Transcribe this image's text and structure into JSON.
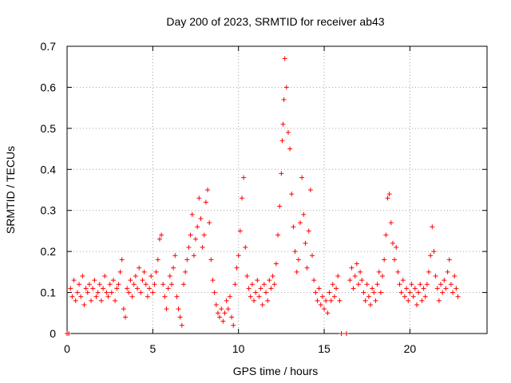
{
  "chart_data": {
    "type": "scatter",
    "title": "Day 200 of 2023, SRMTID for receiver ab43",
    "xlabel": "GPS time / hours",
    "ylabel": "SRMTID / TECUs",
    "xlim": [
      0,
      24.5
    ],
    "ylim": [
      0,
      0.7
    ],
    "xticks": [
      0,
      5,
      10,
      15,
      20
    ],
    "xtick_labels": [
      "0",
      "5",
      "10",
      "15",
      "20"
    ],
    "yticks": [
      0,
      0.1,
      0.2,
      0.3,
      0.4,
      0.5,
      0.6,
      0.7
    ],
    "ytick_labels": [
      "0",
      "0.1",
      "0.2",
      "0.3",
      "0.4",
      "0.5",
      "0.6",
      "0.7"
    ],
    "grid": true,
    "marker": "+",
    "color": "#ff0000",
    "series": [
      {
        "name": "SRMTID",
        "points": [
          [
            0.0,
            0.0
          ],
          [
            0.1,
            0.0
          ],
          [
            0.2,
            0.11
          ],
          [
            0.3,
            0.09
          ],
          [
            0.4,
            0.13
          ],
          [
            0.5,
            0.08
          ],
          [
            0.6,
            0.1
          ],
          [
            0.7,
            0.12
          ],
          [
            0.8,
            0.09
          ],
          [
            0.9,
            0.14
          ],
          [
            1.0,
            0.07
          ],
          [
            1.1,
            0.11
          ],
          [
            1.2,
            0.1
          ],
          [
            1.3,
            0.12
          ],
          [
            1.4,
            0.08
          ],
          [
            1.5,
            0.11
          ],
          [
            1.6,
            0.13
          ],
          [
            1.7,
            0.09
          ],
          [
            1.8,
            0.1
          ],
          [
            1.9,
            0.12
          ],
          [
            2.0,
            0.08
          ],
          [
            2.1,
            0.11
          ],
          [
            2.2,
            0.14
          ],
          [
            2.3,
            0.1
          ],
          [
            2.4,
            0.09
          ],
          [
            2.5,
            0.12
          ],
          [
            2.6,
            0.1
          ],
          [
            2.7,
            0.13
          ],
          [
            2.8,
            0.08
          ],
          [
            2.9,
            0.11
          ],
          [
            3.0,
            0.12
          ],
          [
            3.1,
            0.15
          ],
          [
            3.2,
            0.18
          ],
          [
            3.3,
            0.06
          ],
          [
            3.4,
            0.04
          ],
          [
            3.5,
            0.11
          ],
          [
            3.6,
            0.1
          ],
          [
            3.7,
            0.13
          ],
          [
            3.8,
            0.09
          ],
          [
            3.9,
            0.12
          ],
          [
            4.0,
            0.14
          ],
          [
            4.1,
            0.11
          ],
          [
            4.2,
            0.16
          ],
          [
            4.3,
            0.1
          ],
          [
            4.4,
            0.13
          ],
          [
            4.5,
            0.15
          ],
          [
            4.6,
            0.12
          ],
          [
            4.7,
            0.09
          ],
          [
            4.8,
            0.11
          ],
          [
            4.9,
            0.14
          ],
          [
            5.0,
            0.1
          ],
          [
            5.1,
            0.12
          ],
          [
            5.2,
            0.15
          ],
          [
            5.3,
            0.18
          ],
          [
            5.4,
            0.23
          ],
          [
            5.5,
            0.24
          ],
          [
            5.6,
            0.12
          ],
          [
            5.7,
            0.09
          ],
          [
            5.8,
            0.06
          ],
          [
            5.9,
            0.11
          ],
          [
            6.0,
            0.14
          ],
          [
            6.1,
            0.12
          ],
          [
            6.2,
            0.16
          ],
          [
            6.3,
            0.19
          ],
          [
            6.4,
            0.09
          ],
          [
            6.5,
            0.06
          ],
          [
            6.6,
            0.04
          ],
          [
            6.7,
            0.02
          ],
          [
            6.8,
            0.12
          ],
          [
            6.9,
            0.15
          ],
          [
            7.0,
            0.18
          ],
          [
            7.1,
            0.21
          ],
          [
            7.2,
            0.24
          ],
          [
            7.3,
            0.29
          ],
          [
            7.4,
            0.19
          ],
          [
            7.5,
            0.23
          ],
          [
            7.6,
            0.26
          ],
          [
            7.7,
            0.33
          ],
          [
            7.8,
            0.28
          ],
          [
            7.9,
            0.21
          ],
          [
            8.0,
            0.24
          ],
          [
            8.1,
            0.32
          ],
          [
            8.2,
            0.35
          ],
          [
            8.3,
            0.27
          ],
          [
            8.4,
            0.18
          ],
          [
            8.5,
            0.13
          ],
          [
            8.6,
            0.1
          ],
          [
            8.7,
            0.07
          ],
          [
            8.8,
            0.05
          ],
          [
            8.9,
            0.04
          ],
          [
            9.0,
            0.06
          ],
          [
            9.1,
            0.03
          ],
          [
            9.2,
            0.05
          ],
          [
            9.3,
            0.08
          ],
          [
            9.4,
            0.06
          ],
          [
            9.5,
            0.09
          ],
          [
            9.6,
            0.04
          ],
          [
            9.7,
            0.02
          ],
          [
            9.8,
            0.12
          ],
          [
            9.9,
            0.16
          ],
          [
            10.0,
            0.19
          ],
          [
            10.1,
            0.25
          ],
          [
            10.2,
            0.33
          ],
          [
            10.3,
            0.38
          ],
          [
            10.4,
            0.21
          ],
          [
            10.5,
            0.14
          ],
          [
            10.6,
            0.11
          ],
          [
            10.7,
            0.09
          ],
          [
            10.8,
            0.12
          ],
          [
            10.9,
            0.08
          ],
          [
            11.0,
            0.1
          ],
          [
            11.1,
            0.13
          ],
          [
            11.2,
            0.09
          ],
          [
            11.3,
            0.11
          ],
          [
            11.4,
            0.07
          ],
          [
            11.5,
            0.12
          ],
          [
            11.6,
            0.1
          ],
          [
            11.7,
            0.08
          ],
          [
            11.8,
            0.13
          ],
          [
            11.9,
            0.11
          ],
          [
            12.0,
            0.14
          ],
          [
            12.1,
            0.12
          ],
          [
            12.2,
            0.17
          ],
          [
            12.3,
            0.24
          ],
          [
            12.4,
            0.31
          ],
          [
            12.5,
            0.39
          ],
          [
            12.55,
            0.47
          ],
          [
            12.6,
            0.51
          ],
          [
            12.65,
            0.57
          ],
          [
            12.7,
            0.67
          ],
          [
            12.8,
            0.6
          ],
          [
            12.9,
            0.49
          ],
          [
            13.0,
            0.45
          ],
          [
            13.1,
            0.34
          ],
          [
            13.2,
            0.26
          ],
          [
            13.3,
            0.2
          ],
          [
            13.4,
            0.15
          ],
          [
            13.5,
            0.18
          ],
          [
            13.6,
            0.27
          ],
          [
            13.7,
            0.38
          ],
          [
            13.8,
            0.29
          ],
          [
            13.9,
            0.22
          ],
          [
            14.0,
            0.16
          ],
          [
            14.1,
            0.25
          ],
          [
            14.2,
            0.35
          ],
          [
            14.3,
            0.19
          ],
          [
            14.4,
            0.13
          ],
          [
            14.5,
            0.1
          ],
          [
            14.6,
            0.08
          ],
          [
            14.7,
            0.11
          ],
          [
            14.8,
            0.07
          ],
          [
            14.9,
            0.09
          ],
          [
            15.0,
            0.06
          ],
          [
            15.1,
            0.08
          ],
          [
            15.2,
            0.05
          ],
          [
            15.3,
            0.1
          ],
          [
            15.4,
            0.08
          ],
          [
            15.5,
            0.12
          ],
          [
            15.6,
            0.09
          ],
          [
            15.7,
            0.11
          ],
          [
            15.8,
            0.14
          ],
          [
            15.9,
            0.08
          ],
          [
            16.0,
            0.0
          ],
          [
            16.3,
            0.0
          ],
          [
            16.5,
            0.13
          ],
          [
            16.6,
            0.16
          ],
          [
            16.7,
            0.11
          ],
          [
            16.8,
            0.14
          ],
          [
            16.9,
            0.17
          ],
          [
            17.0,
            0.12
          ],
          [
            17.1,
            0.15
          ],
          [
            17.2,
            0.13
          ],
          [
            17.3,
            0.1
          ],
          [
            17.4,
            0.08
          ],
          [
            17.5,
            0.12
          ],
          [
            17.6,
            0.09
          ],
          [
            17.7,
            0.07
          ],
          [
            17.8,
            0.11
          ],
          [
            17.9,
            0.1
          ],
          [
            18.0,
            0.08
          ],
          [
            18.1,
            0.12
          ],
          [
            18.2,
            0.15
          ],
          [
            18.3,
            0.1
          ],
          [
            18.4,
            0.14
          ],
          [
            18.5,
            0.18
          ],
          [
            18.6,
            0.24
          ],
          [
            18.7,
            0.33
          ],
          [
            18.8,
            0.34
          ],
          [
            18.9,
            0.27
          ],
          [
            19.0,
            0.22
          ],
          [
            19.1,
            0.18
          ],
          [
            19.2,
            0.21
          ],
          [
            19.3,
            0.15
          ],
          [
            19.4,
            0.12
          ],
          [
            19.5,
            0.1
          ],
          [
            19.6,
            0.13
          ],
          [
            19.7,
            0.09
          ],
          [
            19.8,
            0.11
          ],
          [
            19.9,
            0.08
          ],
          [
            20.0,
            0.1
          ],
          [
            20.1,
            0.12
          ],
          [
            20.2,
            0.09
          ],
          [
            20.3,
            0.11
          ],
          [
            20.4,
            0.07
          ],
          [
            20.5,
            0.1
          ],
          [
            20.6,
            0.12
          ],
          [
            20.7,
            0.08
          ],
          [
            20.8,
            0.11
          ],
          [
            20.9,
            0.09
          ],
          [
            21.0,
            0.12
          ],
          [
            21.1,
            0.15
          ],
          [
            21.2,
            0.19
          ],
          [
            21.3,
            0.26
          ],
          [
            21.4,
            0.2
          ],
          [
            21.5,
            0.14
          ],
          [
            21.6,
            0.11
          ],
          [
            21.7,
            0.08
          ],
          [
            21.8,
            0.12
          ],
          [
            21.9,
            0.1
          ],
          [
            22.0,
            0.13
          ],
          [
            22.1,
            0.11
          ],
          [
            22.2,
            0.15
          ],
          [
            22.3,
            0.18
          ],
          [
            22.4,
            0.12
          ],
          [
            22.5,
            0.1
          ],
          [
            22.6,
            0.14
          ],
          [
            22.7,
            0.11
          ],
          [
            22.8,
            0.09
          ]
        ]
      }
    ]
  }
}
